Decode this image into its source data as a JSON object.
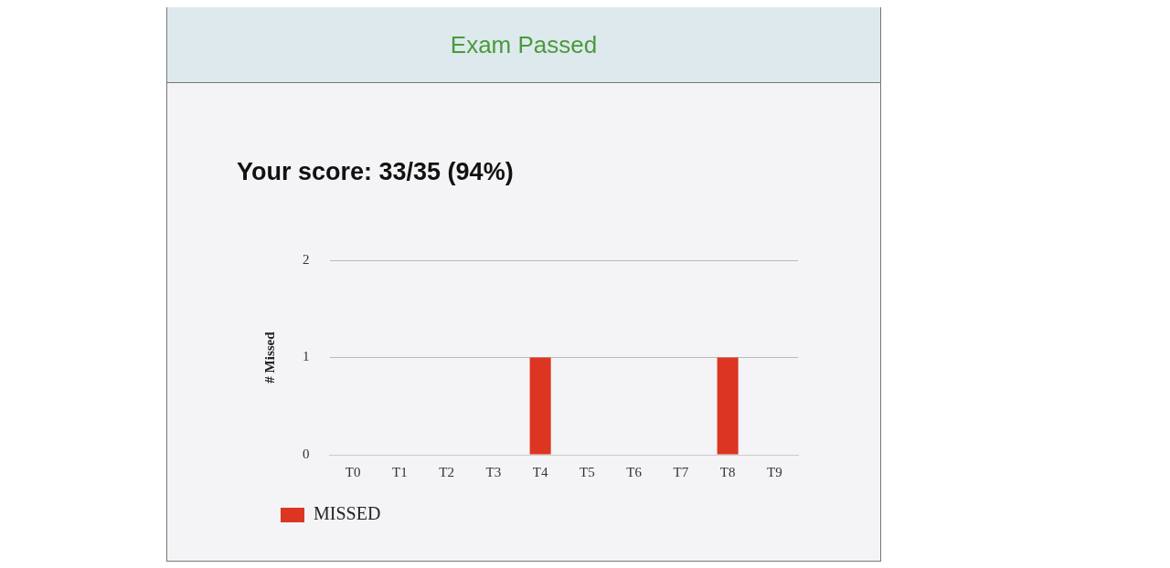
{
  "chart_data": {
    "type": "bar",
    "title": "Exam Passed",
    "subtitle": "Your score: 33/35 (94%)",
    "ylabel": "# Missed",
    "categories": [
      "T0",
      "T1",
      "T2",
      "T3",
      "T4",
      "T5",
      "T6",
      "T7",
      "T8",
      "T9"
    ],
    "series": [
      {
        "name": "MISSED",
        "color": "#dc3522",
        "values": [
          0,
          0,
          0,
          0,
          1,
          0,
          0,
          0,
          1,
          0
        ]
      }
    ],
    "ylim": [
      0,
      2
    ],
    "yticks": [
      0,
      1,
      2
    ],
    "grid": "y",
    "legend": "bottom left"
  }
}
